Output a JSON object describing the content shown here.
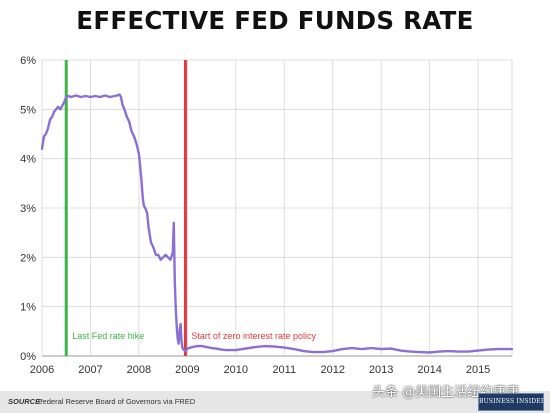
{
  "chart_data": {
    "type": "line",
    "title": "EFFECTIVE FED FUNDS RATE",
    "xlabel": "",
    "ylabel": "",
    "xlim": [
      2006.0,
      2015.7
    ],
    "ylim": [
      0,
      6
    ],
    "x_ticks": [
      2006,
      2007,
      2008,
      2009,
      2010,
      2011,
      2012,
      2013,
      2014,
      2015
    ],
    "x_tick_labels": [
      "2006",
      "2007",
      "2008",
      "2009",
      "2010",
      "2011",
      "2012",
      "2013",
      "2014",
      "2015"
    ],
    "y_ticks": [
      0,
      1,
      2,
      3,
      4,
      5,
      6
    ],
    "y_tick_labels": [
      "0%",
      "1%",
      "2%",
      "3%",
      "4%",
      "5%",
      "6%"
    ],
    "grid": true,
    "series": [
      {
        "color": "#8a6fd4",
        "x": [
          2006.0,
          2006.04,
          2006.08,
          2006.12,
          2006.17,
          2006.21,
          2006.25,
          2006.29,
          2006.33,
          2006.38,
          2006.42,
          2006.46,
          2006.5,
          2006.55,
          2006.6,
          2006.7,
          2006.8,
          2006.9,
          2007.0,
          2007.1,
          2007.2,
          2007.3,
          2007.4,
          2007.5,
          2007.55,
          2007.6,
          2007.63,
          2007.66,
          2007.7,
          2007.75,
          2007.8,
          2007.85,
          2007.9,
          2007.95,
          2008.0,
          2008.05,
          2008.08,
          2008.1,
          2008.13,
          2008.17,
          2008.2,
          2008.25,
          2008.3,
          2008.35,
          2008.4,
          2008.45,
          2008.5,
          2008.55,
          2008.6,
          2008.65,
          2008.7,
          2008.72,
          2008.74,
          2008.76,
          2008.78,
          2008.8,
          2008.82,
          2008.84,
          2008.86,
          2008.88,
          2008.9,
          2008.93,
          2008.96,
          2009.0,
          2009.1,
          2009.2,
          2009.3,
          2009.4,
          2009.5,
          2009.6,
          2009.7,
          2009.8,
          2009.9,
          2010.0,
          2010.2,
          2010.4,
          2010.6,
          2010.8,
          2011.0,
          2011.2,
          2011.4,
          2011.5,
          2011.6,
          2011.8,
          2012.0,
          2012.2,
          2012.4,
          2012.6,
          2012.8,
          2013.0,
          2013.2,
          2013.4,
          2013.6,
          2013.8,
          2014.0,
          2014.2,
          2014.4,
          2014.6,
          2014.8,
          2015.0,
          2015.2,
          2015.4,
          2015.6,
          2015.7
        ],
        "y": [
          4.2,
          4.45,
          4.5,
          4.6,
          4.8,
          4.85,
          4.95,
          5.0,
          5.05,
          5.0,
          5.08,
          5.15,
          5.25,
          5.27,
          5.25,
          5.28,
          5.25,
          5.27,
          5.25,
          5.27,
          5.25,
          5.28,
          5.25,
          5.27,
          5.28,
          5.3,
          5.25,
          5.1,
          5.0,
          4.85,
          4.75,
          4.55,
          4.45,
          4.3,
          4.1,
          3.6,
          3.2,
          3.05,
          3.0,
          2.9,
          2.6,
          2.3,
          2.2,
          2.05,
          2.05,
          1.95,
          2.0,
          2.05,
          2.0,
          1.95,
          2.1,
          2.7,
          1.5,
          1.0,
          0.6,
          0.35,
          0.25,
          0.5,
          0.65,
          0.3,
          0.16,
          0.12,
          0.1,
          0.15,
          0.18,
          0.2,
          0.2,
          0.18,
          0.16,
          0.15,
          0.13,
          0.12,
          0.12,
          0.12,
          0.15,
          0.18,
          0.2,
          0.19,
          0.17,
          0.14,
          0.1,
          0.09,
          0.08,
          0.08,
          0.1,
          0.14,
          0.16,
          0.14,
          0.16,
          0.14,
          0.15,
          0.11,
          0.09,
          0.08,
          0.07,
          0.09,
          0.1,
          0.09,
          0.09,
          0.11,
          0.13,
          0.14,
          0.14,
          0.14
        ]
      }
    ],
    "annotations": [
      {
        "x": 2006.5,
        "label": "Last Fed rate hike",
        "color": "#3db34a"
      },
      {
        "x": 2008.96,
        "label": "Start of zero interest rate policy",
        "color": "#e0393e"
      }
    ]
  },
  "footer": {
    "source_label": "SOURCE:",
    "source_text": "Federal Reserve Board of Governors via FRED",
    "logo_text": "BUSINESS INSIDER"
  },
  "watermark": "头条 @美国生活纽约康康"
}
